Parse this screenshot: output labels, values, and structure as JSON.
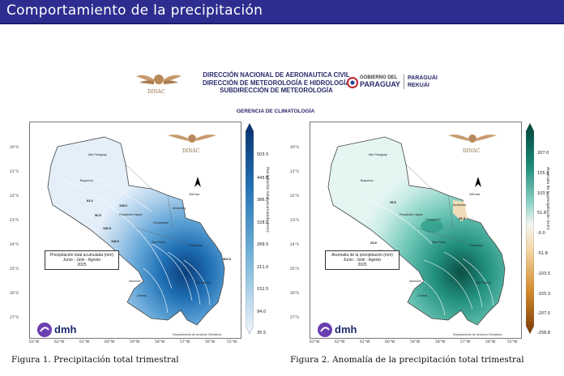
{
  "slide": {
    "title": "Comportamiento de la precipitación"
  },
  "banner": {
    "dinac_text": "DINAC",
    "lines": [
      "DIRECCIÓN NACIONAL DE AERONAUTICA CIVIL",
      "DIRECCIÓN DE METEOROLOGÍA E HIDROLOGÍA",
      "SUBDIRECCIÓN DE METEOROLOGÍA"
    ],
    "gov_top": "GOBIERNO DEL",
    "gov_main": "PARAGUAY",
    "motto_1": "PARAGUÁI",
    "motto_2": "REKUÁI"
  },
  "subtitle": "GERENCIA DE CLIMATOLOGÍA",
  "axes": {
    "lat": [
      "20°S",
      "21°S",
      "22°S",
      "23°S",
      "24°S",
      "25°S",
      "26°S",
      "27°S"
    ],
    "lon": [
      "63°W",
      "62°W",
      "61°W",
      "60°W",
      "59°W",
      "58°W",
      "57°W",
      "56°W",
      "55°W"
    ]
  },
  "map1": {
    "legend_title": "Precipitación total acumulada (mm)",
    "legend_period": "Junio - Julio - Agosto",
    "legend_year": "2025",
    "colorbar_label": "Precipitación total acumulada (mm)",
    "ticks": [
      "503.5",
      "445.0",
      "386.5",
      "328.0",
      "269.5",
      "211.0",
      "152.5",
      "94.0",
      "35.5"
    ],
    "contour_labels": [
      "63.2",
      "90.5",
      "118.8",
      "148.2",
      "118.6",
      "300.3"
    ],
    "scale": "100 km",
    "credit": "Departamento de servicios Climáticos",
    "dmh": "dmh"
  },
  "map2": {
    "legend_title": "Anomalía de la precipitación (mm)",
    "legend_period": "Junio - Julio - Agosto",
    "legend_year": "2025",
    "colorbar_label": "Anomalía de la precipitación (mm)",
    "ticks": [
      "207.0",
      "155.3",
      "103.5",
      "51.8",
      "-0.0",
      "-51.8",
      "-103.5",
      "-155.3",
      "-207.0",
      "-258.8"
    ],
    "contour_labels": [
      "25.9",
      "-51.8",
      "25.9",
      "0.0"
    ],
    "scale": "100 km",
    "credit": "Departamento de servicios Climáticos",
    "dmh": "dmh"
  },
  "places": [
    "Boquerón",
    "Alto Paraguay",
    "Presidente Hayes",
    "Concepción",
    "Amambay",
    "San Pedro",
    "Canindeyú",
    "Asunción",
    "Central",
    "Alto Paraná"
  ],
  "captions": {
    "fig1": "Figura 1. Precipitación total trimestral",
    "fig2": "Figura 2. Anomalía de la precipitación total trimestral"
  },
  "colors": {
    "header": "#2d2d8f",
    "precip_low": "#eef5fb",
    "precip_high": "#0b3d7a",
    "anom_pos": "#0b5a4e",
    "anom_neg": "#7a3a05"
  }
}
